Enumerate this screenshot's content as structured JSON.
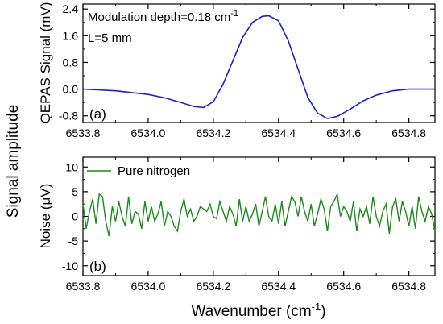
{
  "figure": {
    "shared_ylabel": "Signal amplitude",
    "xlabel_base": "Wavenumber (cm",
    "xlabel_sup": "-1",
    "xlabel_end": ")"
  },
  "chart_data": [
    {
      "type": "line",
      "panel_label": "(a)",
      "ylabel": "QEPAS Signal  (mV)",
      "annotations": {
        "line1_base": "Modulation depth=0.18 cm",
        "line1_sup": "-1",
        "line2": "L=5 mm"
      },
      "xlim": [
        6533.8,
        6534.88
      ],
      "ylim": [
        -1.0,
        2.55
      ],
      "xticks": [
        "6533.8",
        "6534.0",
        "6534.2",
        "6534.4",
        "6534.6",
        "6534.8"
      ],
      "yticks": [
        "2.4",
        "1.6",
        "0.8",
        "0.0",
        "-0.8"
      ],
      "series": [
        {
          "color": "#1f1fd0",
          "x": [
            6533.8,
            6533.9,
            6534.0,
            6534.05,
            6534.1,
            6534.14,
            6534.17,
            6534.2,
            6534.23,
            6534.26,
            6534.29,
            6534.32,
            6534.35,
            6534.37,
            6534.4,
            6534.43,
            6534.46,
            6534.49,
            6534.52,
            6534.55,
            6534.58,
            6534.62,
            6534.66,
            6534.7,
            6534.75,
            6534.8,
            6534.88
          ],
          "y": [
            0.0,
            -0.05,
            -0.16,
            -0.26,
            -0.4,
            -0.52,
            -0.55,
            -0.38,
            0.15,
            0.85,
            1.55,
            2.0,
            2.18,
            2.2,
            2.05,
            1.45,
            0.6,
            -0.25,
            -0.72,
            -0.88,
            -0.82,
            -0.6,
            -0.35,
            -0.18,
            -0.05,
            0.0,
            0.0
          ]
        }
      ]
    },
    {
      "type": "line",
      "panel_label": "(b)",
      "ylabel_base": "Noise (",
      "ylabel_unit": "μV",
      "ylabel_end": ")",
      "xlim": [
        6533.8,
        6534.88
      ],
      "ylim": [
        -12,
        12
      ],
      "xticks": [
        "6533.8",
        "6534.0",
        "6534.2",
        "6534.4",
        "6534.6",
        "6534.8"
      ],
      "yticks": [
        "10",
        "5",
        "0",
        "-5",
        "-10"
      ],
      "legend": "Pure nitrogen",
      "series": [
        {
          "name": "Pure nitrogen",
          "color": "#1a8a1a",
          "x": [
            6533.8,
            6533.81,
            6533.82,
            6533.83,
            6533.84,
            6533.85,
            6533.86,
            6533.87,
            6533.88,
            6533.89,
            6533.9,
            6533.91,
            6533.92,
            6533.93,
            6533.94,
            6533.95,
            6533.96,
            6533.97,
            6533.98,
            6533.99,
            6534.0,
            6534.01,
            6534.02,
            6534.03,
            6534.04,
            6534.05,
            6534.06,
            6534.07,
            6534.08,
            6534.09,
            6534.1,
            6534.11,
            6534.12,
            6534.13,
            6534.14,
            6534.15,
            6534.16,
            6534.17,
            6534.18,
            6534.19,
            6534.2,
            6534.21,
            6534.22,
            6534.23,
            6534.24,
            6534.25,
            6534.26,
            6534.27,
            6534.28,
            6534.29,
            6534.3,
            6534.31,
            6534.32,
            6534.33,
            6534.34,
            6534.35,
            6534.36,
            6534.37,
            6534.38,
            6534.39,
            6534.4,
            6534.41,
            6534.42,
            6534.43,
            6534.44,
            6534.45,
            6534.46,
            6534.47,
            6534.48,
            6534.49,
            6534.5,
            6534.51,
            6534.52,
            6534.53,
            6534.54,
            6534.55,
            6534.56,
            6534.57,
            6534.58,
            6534.59,
            6534.6,
            6534.61,
            6534.62,
            6534.63,
            6534.64,
            6534.65,
            6534.66,
            6534.67,
            6534.68,
            6534.69,
            6534.7,
            6534.71,
            6534.72,
            6534.73,
            6534.74,
            6534.75,
            6534.76,
            6534.77,
            6534.78,
            6534.79,
            6534.8,
            6534.81,
            6534.82,
            6534.83,
            6534.84,
            6534.85,
            6534.86,
            6534.87,
            6534.88
          ],
          "y": [
            2.5,
            -2.5,
            1.0,
            3.5,
            -1.5,
            4.5,
            4.0,
            -1.0,
            -4.0,
            2.0,
            -1.0,
            3.0,
            0.0,
            -2.0,
            4.0,
            -1.5,
            1.0,
            0.5,
            -2.5,
            3.0,
            -1.0,
            2.0,
            -1.0,
            0.5,
            3.0,
            -2.0,
            1.0,
            0.0,
            -2.0,
            -3.0,
            1.0,
            3.5,
            0.0,
            1.5,
            -1.0,
            0.0,
            2.0,
            1.5,
            1.0,
            2.5,
            0.0,
            -0.5,
            3.0,
            1.0,
            -1.0,
            2.0,
            0.5,
            -2.0,
            3.5,
            -1.0,
            2.0,
            -1.0,
            0.5,
            2.5,
            -2.0,
            1.0,
            4.0,
            0.0,
            -1.0,
            2.5,
            -1.5,
            3.0,
            -2.0,
            1.0,
            4.0,
            3.0,
            0.0,
            4.0,
            1.0,
            -1.0,
            2.5,
            -2.0,
            0.5,
            3.5,
            1.5,
            -3.0,
            2.0,
            3.0,
            4.5,
            0.0,
            2.0,
            1.0,
            -1.0,
            3.0,
            -3.0,
            1.5,
            0.0,
            2.0,
            -1.5,
            4.0,
            0.0,
            -2.0,
            1.0,
            2.5,
            -3.5,
            2.0,
            3.5,
            -1.0,
            3.0,
            1.0,
            -2.0,
            2.0,
            -2.5,
            4.0,
            1.0,
            -1.0,
            2.0,
            0.5,
            -3.0
          ]
        }
      ]
    }
  ]
}
